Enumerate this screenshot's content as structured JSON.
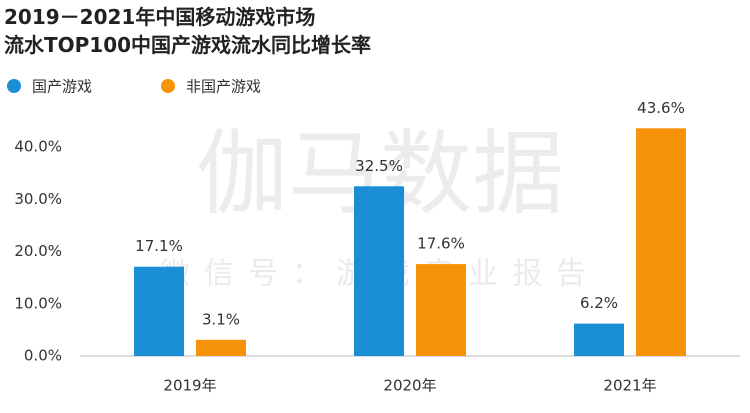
{
  "chart_data": {
    "type": "bar",
    "title": [
      "2019－2021年中国移动游戏市场",
      "流水TOP100中国产游戏流水同比增长率"
    ],
    "watermark": [
      "伽马数据",
      "微信号：游戏产业报告"
    ],
    "categories": [
      "2019年",
      "2020年",
      "2021年"
    ],
    "series": [
      {
        "name": "国产游戏",
        "color": "#1a8fd6",
        "values": [
          17.1,
          32.5,
          6.2
        ],
        "value_labels": [
          "17.1%",
          "32.5%",
          "6.2%"
        ]
      },
      {
        "name": "非国产游戏",
        "color": "#f7930a",
        "values": [
          3.1,
          17.6,
          43.6
        ],
        "value_labels": [
          "3.1%",
          "17.6%",
          "43.6%"
        ]
      }
    ],
    "ylim": [
      0,
      45
    ],
    "yticks": [
      {
        "value": 0,
        "label": "0.0%"
      },
      {
        "value": 10,
        "label": "10.0%"
      },
      {
        "value": 20,
        "label": "20.0%"
      },
      {
        "value": 30,
        "label": "30.0%"
      },
      {
        "value": 40,
        "label": "40.0%"
      }
    ],
    "grid": false
  }
}
